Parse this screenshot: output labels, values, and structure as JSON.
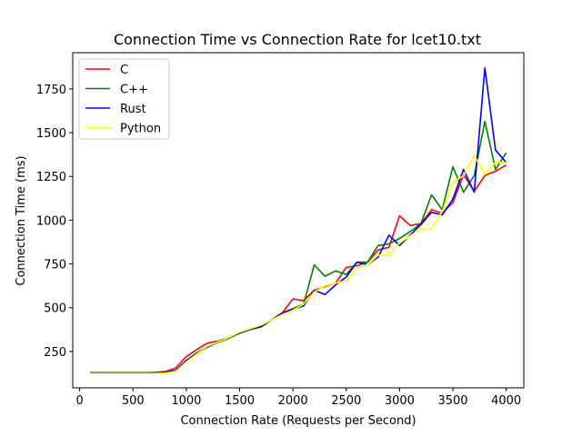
{
  "chart_data": {
    "type": "line",
    "title": "Connection Time vs Connection Rate for lcet10.txt",
    "xlabel": "Connection Rate (Requests per Second)",
    "ylabel": "Connection Time (ms)",
    "xlim": [
      -65,
      4165
    ],
    "ylim": [
      42,
      1957
    ],
    "xticks": [
      0,
      500,
      1000,
      1500,
      2000,
      2500,
      3000,
      3500,
      4000
    ],
    "xtick_labels": [
      "0",
      "500",
      "1000",
      "1500",
      "2000",
      "2500",
      "3000",
      "3500",
      "4000"
    ],
    "yticks": [
      250,
      500,
      750,
      1000,
      1250,
      1500,
      1750
    ],
    "ytick_labels": [
      "250",
      "500",
      "750",
      "1000",
      "1250",
      "1500",
      "1750"
    ],
    "grid": false,
    "legend_position": "upper-left",
    "x": [
      100,
      200,
      300,
      400,
      500,
      600,
      700,
      800,
      900,
      1000,
      1100,
      1200,
      1300,
      1400,
      1500,
      1600,
      1700,
      1800,
      1900,
      2000,
      2100,
      2200,
      2300,
      2400,
      2500,
      2600,
      2700,
      2800,
      2900,
      3000,
      3100,
      3200,
      3300,
      3400,
      3500,
      3600,
      3700,
      3800,
      3900,
      4000
    ],
    "series": [
      {
        "name": "C",
        "color": "#ff0000",
        "values": [
          128,
          128,
          128,
          128,
          128,
          128,
          130,
          135,
          155,
          220,
          262,
          298,
          310,
          330,
          355,
          375,
          395,
          430,
          470,
          550,
          540,
          600,
          620,
          640,
          730,
          740,
          760,
          830,
          845,
          1025,
          970,
          980,
          1060,
          1040,
          1100,
          1260,
          1165,
          1255,
          1280,
          1315
        ]
      },
      {
        "name": "C++",
        "color": "#008000",
        "values": [
          128,
          128,
          128,
          128,
          128,
          128,
          128,
          132,
          142,
          198,
          243,
          278,
          302,
          325,
          355,
          375,
          395,
          430,
          470,
          495,
          520,
          745,
          680,
          710,
          690,
          760,
          760,
          855,
          865,
          895,
          935,
          980,
          1145,
          1060,
          1305,
          1160,
          1255,
          1565,
          1290,
          1385
        ]
      },
      {
        "name": "Rust",
        "color": "#0000ff",
        "values": [
          128,
          128,
          128,
          128,
          128,
          128,
          128,
          130,
          140,
          198,
          238,
          275,
          305,
          330,
          355,
          375,
          390,
          430,
          470,
          490,
          510,
          600,
          575,
          630,
          675,
          760,
          745,
          790,
          915,
          855,
          915,
          975,
          1045,
          1030,
          1120,
          1290,
          1160,
          1870,
          1400,
          1330
        ]
      },
      {
        "name": "Python",
        "color": "#ffff00",
        "values": [
          124,
          124,
          124,
          124,
          124,
          124,
          124,
          126,
          136,
          190,
          236,
          280,
          305,
          330,
          360,
          380,
          400,
          430,
          460,
          485,
          520,
          590,
          625,
          640,
          655,
          730,
          745,
          800,
          800,
          870,
          910,
          950,
          950,
          1050,
          1215,
          1255,
          1370,
          1265,
          1330,
          1330
        ]
      }
    ]
  }
}
